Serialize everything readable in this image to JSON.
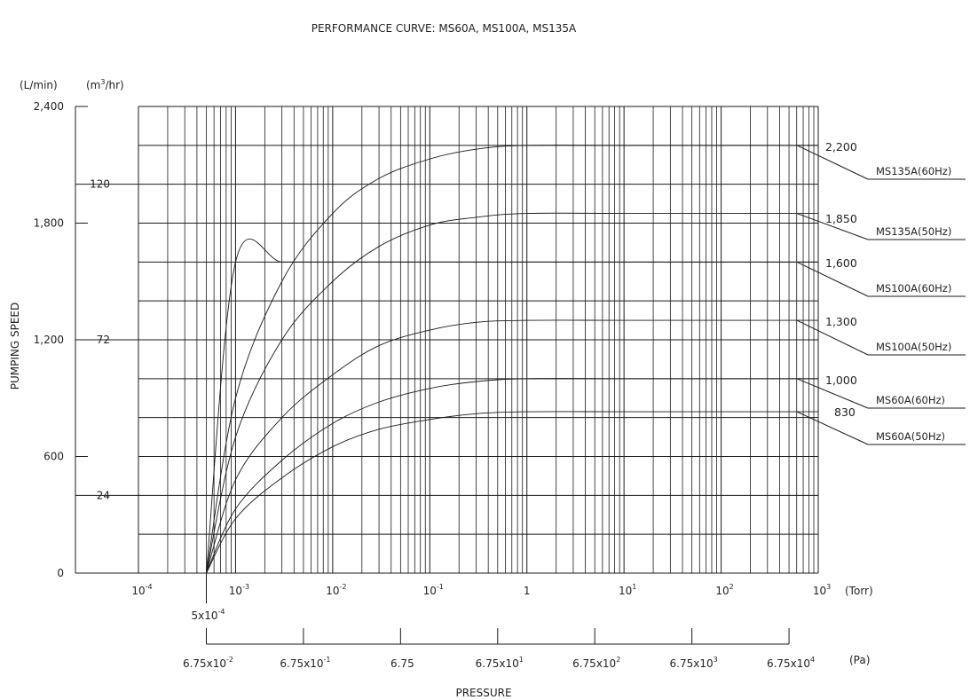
{
  "chart_data": {
    "type": "line",
    "title": "PERFORMANCE CURVE: MS60A, MS100A, MS135A",
    "xlabel": "PRESSURE",
    "ylabel": "PUMPING SPEED",
    "x_scale": "log",
    "xlim_torr": [
      0.0001,
      1000
    ],
    "ylim_lmin": [
      0,
      2400
    ],
    "grid": true,
    "units": {
      "y_left": "(L/min)",
      "y_right_base": "(m",
      "y_right_sup": "3",
      "y_right_tail": "/hr)",
      "x_top": "(Torr)",
      "x_bottom": "(Pa)"
    },
    "y_ticks_lmin": [
      "2,400",
      "1,800",
      "1,200",
      "600",
      "0"
    ],
    "y_ticks_m3hr": [
      {
        "label": "120",
        "value_lmin": 2000
      },
      {
        "label": "72",
        "value_lmin": 1200
      },
      {
        "label": "24",
        "value_lmin": 400
      }
    ],
    "x_ticks_torr": [
      {
        "base": "10",
        "exp": "-4",
        "value": 0.0001
      },
      {
        "base": "10",
        "exp": "-3",
        "value": 0.001
      },
      {
        "base": "10",
        "exp": "-2",
        "value": 0.01
      },
      {
        "base": "10",
        "exp": "-1",
        "value": 0.1
      },
      {
        "base": "1",
        "exp": "",
        "value": 1
      },
      {
        "base": "10",
        "exp": "1",
        "value": 10
      },
      {
        "base": "10",
        "exp": "2",
        "value": 100
      },
      {
        "base": "10",
        "exp": "3",
        "value": 1000
      }
    ],
    "x_start_label": {
      "base": "5x10",
      "exp": "-4",
      "value": 0.0005
    },
    "x_ticks_pa": [
      {
        "base": "6.75x10",
        "exp": "-2",
        "value_torr": 0.0005
      },
      {
        "base": "6.75x10",
        "exp": "-1",
        "value_torr": 0.005
      },
      {
        "base": "6.75",
        "exp": "",
        "value_torr": 0.05
      },
      {
        "base": "6.75x10",
        "exp": "1",
        "value_torr": 0.5
      },
      {
        "base": "6.75x10",
        "exp": "2",
        "value_torr": 5
      },
      {
        "base": "6.75x10",
        "exp": "3",
        "value_torr": 50
      },
      {
        "base": "6.75x10",
        "exp": "4",
        "value_torr": 500
      }
    ],
    "series": [
      {
        "name": "MS135A(60Hz)",
        "max_label": "2,200",
        "x": [
          0.0005,
          0.001,
          0.003,
          0.01,
          0.03,
          0.1,
          0.3,
          1,
          10,
          100,
          1000
        ],
        "y": [
          0,
          900,
          1500,
          1850,
          2030,
          2130,
          2180,
          2200,
          2200,
          2200,
          2200
        ]
      },
      {
        "name": "MS135A(50Hz)",
        "max_label": "1,850",
        "x": [
          0.0005,
          0.001,
          0.003,
          0.01,
          0.03,
          0.1,
          0.3,
          1,
          10,
          100,
          1000
        ],
        "y": [
          0,
          700,
          1200,
          1500,
          1680,
          1790,
          1830,
          1850,
          1850,
          1850,
          1850
        ]
      },
      {
        "name": "MS100A(60Hz)",
        "max_label": "1,600",
        "x": [
          0.0005,
          0.001,
          0.003,
          0.01,
          0.03,
          0.1,
          0.3,
          1,
          10,
          100,
          1000
        ],
        "y": [
          0,
          1600,
          1600,
          1600,
          1600,
          1600,
          1600,
          1600,
          1600,
          1600,
          1600
        ]
      },
      {
        "name": "MS100A(50Hz)",
        "max_label": "1,300",
        "x": [
          0.0005,
          0.001,
          0.003,
          0.01,
          0.03,
          0.1,
          0.3,
          1,
          10,
          100,
          1000
        ],
        "y": [
          0,
          480,
          800,
          1020,
          1170,
          1250,
          1290,
          1300,
          1300,
          1300,
          1300
        ]
      },
      {
        "name": "MS60A(60Hz)",
        "max_label": "1,000",
        "x": [
          0.0005,
          0.001,
          0.003,
          0.01,
          0.03,
          0.1,
          0.3,
          1,
          10,
          100,
          1000
        ],
        "y": [
          0,
          330,
          580,
          770,
          880,
          950,
          985,
          1000,
          1000,
          1000,
          1000
        ]
      },
      {
        "name": "MS60A(50Hz)",
        "max_label": "830",
        "x": [
          0.0005,
          0.001,
          0.003,
          0.01,
          0.03,
          0.1,
          0.3,
          1,
          10,
          100,
          1000
        ],
        "y": [
          0,
          280,
          490,
          650,
          740,
          790,
          820,
          830,
          830,
          830,
          830
        ]
      }
    ]
  }
}
